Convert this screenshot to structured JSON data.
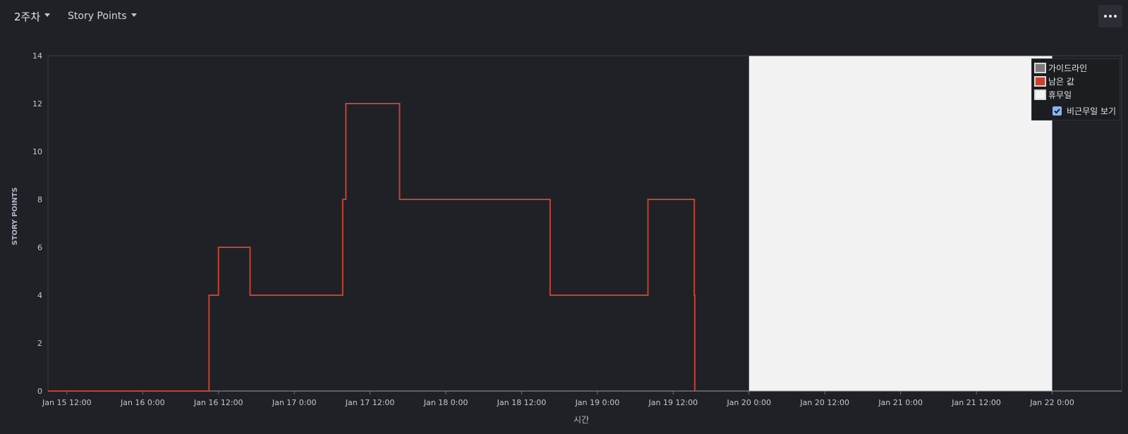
{
  "toolbar": {
    "week_selector": "2주차",
    "metric_selector": "Story Points",
    "more_icon": "more-horizontal-icon"
  },
  "legend": {
    "items": [
      {
        "label": "가이드라인",
        "color": "#7a7a7a"
      },
      {
        "label": "남은 값",
        "color": "#c9402e"
      },
      {
        "label": "휴무일",
        "color": "#f2f2f2"
      }
    ],
    "checkbox_label": "비근무일 보기",
    "checkbox_checked": true
  },
  "chart_data": {
    "type": "line",
    "step": true,
    "xlabel": "시간",
    "ylabel": "STORY POINTS",
    "ylim": [
      0,
      14
    ],
    "yticks": [
      0,
      2,
      4,
      6,
      8,
      10,
      12,
      14
    ],
    "xlim": [
      "2024-01-15 09:00",
      "2024-01-22 11:00"
    ],
    "xticks": [
      "Jan 15 12:00",
      "Jan 16 0:00",
      "Jan 16 12:00",
      "Jan 17 0:00",
      "Jan 17 12:00",
      "Jan 18 0:00",
      "Jan 18 12:00",
      "Jan 19 0:00",
      "Jan 19 12:00",
      "Jan 20 0:00",
      "Jan 20 12:00",
      "Jan 21 0:00",
      "Jan 21 12:00",
      "Jan 22 0:00"
    ],
    "non_working_period": [
      "2024-01-20 00:00",
      "2024-01-22 00:00"
    ],
    "series": [
      {
        "name": "남은 값",
        "color": "#c9402e",
        "points": [
          [
            "2024-01-15 09:00",
            0
          ],
          [
            "2024-01-16 10:30",
            0
          ],
          [
            "2024-01-16 10:30",
            4
          ],
          [
            "2024-01-16 12:00",
            4
          ],
          [
            "2024-01-16 12:00",
            6
          ],
          [
            "2024-01-16 17:00",
            6
          ],
          [
            "2024-01-16 17:00",
            4
          ],
          [
            "2024-01-17 07:40",
            4
          ],
          [
            "2024-01-17 07:40",
            8
          ],
          [
            "2024-01-17 08:10",
            8
          ],
          [
            "2024-01-17 08:10",
            12
          ],
          [
            "2024-01-17 16:40",
            12
          ],
          [
            "2024-01-17 16:40",
            8
          ],
          [
            "2024-01-18 16:30",
            8
          ],
          [
            "2024-01-18 16:30",
            4
          ],
          [
            "2024-01-19 08:00",
            4
          ],
          [
            "2024-01-19 08:00",
            8
          ],
          [
            "2024-01-19 15:20",
            8
          ],
          [
            "2024-01-19 15:20",
            4
          ],
          [
            "2024-01-19 15:25",
            4
          ],
          [
            "2024-01-19 15:25",
            0
          ]
        ]
      }
    ]
  }
}
